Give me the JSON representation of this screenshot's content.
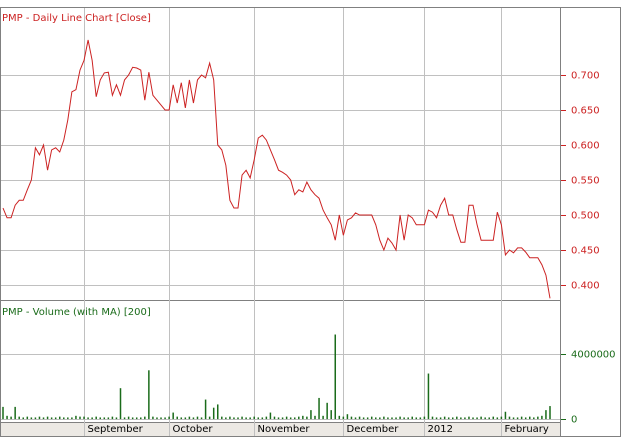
{
  "chart_data": [
    {
      "type": "line",
      "title": "PMP - Daily Line Chart [Close]",
      "color": "#cc2222",
      "grid": true,
      "ylim": [
        0.3786,
        0.7957
      ],
      "yticks": [
        {
          "value": 0.4,
          "label": "0.400"
        },
        {
          "value": 0.45,
          "label": "0.450"
        },
        {
          "value": 0.5,
          "label": "0.500"
        },
        {
          "value": 0.55,
          "label": "0.550"
        },
        {
          "value": 0.6,
          "label": "0.600"
        },
        {
          "value": 0.65,
          "label": "0.650"
        },
        {
          "value": 0.7,
          "label": "0.700"
        }
      ],
      "values": [
        0.51,
        0.496,
        0.496,
        0.514,
        0.521,
        0.521,
        0.536,
        0.55,
        0.596,
        0.586,
        0.6,
        0.564,
        0.593,
        0.596,
        0.59,
        0.607,
        0.636,
        0.676,
        0.679,
        0.707,
        0.721,
        0.75,
        0.721,
        0.669,
        0.693,
        0.703,
        0.704,
        0.671,
        0.686,
        0.671,
        0.693,
        0.7,
        0.711,
        0.71,
        0.707,
        0.664,
        0.704,
        0.671,
        0.664,
        0.657,
        0.65,
        0.65,
        0.686,
        0.66,
        0.689,
        0.653,
        0.693,
        0.66,
        0.693,
        0.7,
        0.696,
        0.717,
        0.693,
        0.6,
        0.593,
        0.571,
        0.521,
        0.51,
        0.51,
        0.557,
        0.564,
        0.553,
        0.579,
        0.61,
        0.614,
        0.607,
        0.593,
        0.579,
        0.564,
        0.561,
        0.557,
        0.55,
        0.529,
        0.536,
        0.533,
        0.547,
        0.536,
        0.529,
        0.524,
        0.507,
        0.496,
        0.486,
        0.464,
        0.5,
        0.471,
        0.493,
        0.496,
        0.503,
        0.5,
        0.5,
        0.5,
        0.5,
        0.486,
        0.464,
        0.45,
        0.467,
        0.46,
        0.45,
        0.5,
        0.464,
        0.5,
        0.496,
        0.486,
        0.486,
        0.486,
        0.507,
        0.504,
        0.496,
        0.514,
        0.524,
        0.5,
        0.5,
        0.479,
        0.461,
        0.461,
        0.514,
        0.514,
        0.486,
        0.464,
        0.464,
        0.464,
        0.464,
        0.504,
        0.486,
        0.443,
        0.45,
        0.446,
        0.453,
        0.453,
        0.447,
        0.439,
        0.439,
        0.439,
        0.429,
        0.414,
        0.381
      ]
    },
    {
      "type": "bar",
      "title": "PMP - Volume (with MA) [200]",
      "color": "#1a6b1a",
      "grid": true,
      "ylim": [
        -180000,
        7200000
      ],
      "yticks": [
        0,
        4000000
      ],
      "categories": [
        null,
        null,
        null,
        null,
        null,
        null,
        null,
        null,
        null,
        null,
        null,
        null,
        null,
        null,
        null,
        null,
        null,
        null,
        null,
        null,
        "September",
        null,
        null,
        null,
        null,
        null,
        null,
        null,
        null,
        null,
        null,
        null,
        null,
        null,
        null,
        null,
        null,
        null,
        null,
        null,
        null,
        "October",
        null,
        null,
        null,
        null,
        null,
        null,
        null,
        null,
        null,
        null,
        null,
        null,
        null,
        null,
        null,
        null,
        null,
        null,
        null,
        null,
        "November",
        null,
        null,
        null,
        null,
        null,
        null,
        null,
        null,
        null,
        null,
        null,
        null,
        null,
        null,
        null,
        null,
        null,
        null,
        null,
        null,
        null,
        "December",
        null,
        null,
        null,
        null,
        null,
        null,
        null,
        null,
        null,
        null,
        null,
        null,
        null,
        null,
        null,
        null,
        null,
        null,
        null,
        "2012",
        null,
        null,
        null,
        null,
        null,
        null,
        null,
        null,
        null,
        null,
        null,
        null,
        null,
        null,
        null,
        null,
        null,
        null,
        "February",
        null,
        null,
        null,
        null,
        null,
        null,
        null,
        null,
        null,
        null,
        null,
        null
      ],
      "values": [
        750000,
        200000,
        150000,
        750000,
        150000,
        100000,
        150000,
        100000,
        100000,
        150000,
        100000,
        150000,
        100000,
        100000,
        150000,
        100000,
        100000,
        100000,
        200000,
        150000,
        150000,
        100000,
        100000,
        150000,
        100000,
        100000,
        100000,
        150000,
        100000,
        1900000,
        100000,
        150000,
        100000,
        100000,
        100000,
        150000,
        3000000,
        150000,
        100000,
        100000,
        100000,
        150000,
        400000,
        150000,
        100000,
        100000,
        150000,
        100000,
        150000,
        100000,
        1200000,
        150000,
        700000,
        900000,
        150000,
        100000,
        150000,
        100000,
        100000,
        150000,
        100000,
        100000,
        150000,
        100000,
        100000,
        150000,
        400000,
        150000,
        100000,
        100000,
        150000,
        100000,
        100000,
        150000,
        200000,
        150000,
        550000,
        200000,
        1300000,
        200000,
        1000000,
        550000,
        5200000,
        200000,
        150000,
        300000,
        150000,
        100000,
        150000,
        100000,
        100000,
        150000,
        100000,
        100000,
        150000,
        100000,
        100000,
        100000,
        150000,
        100000,
        100000,
        150000,
        100000,
        100000,
        150000,
        2800000,
        150000,
        100000,
        100000,
        150000,
        100000,
        100000,
        150000,
        100000,
        100000,
        150000,
        100000,
        100000,
        150000,
        100000,
        100000,
        150000,
        100000,
        150000,
        450000,
        150000,
        100000,
        100000,
        150000,
        100000,
        150000,
        100000,
        150000,
        200000,
        550000,
        800000
      ]
    }
  ]
}
